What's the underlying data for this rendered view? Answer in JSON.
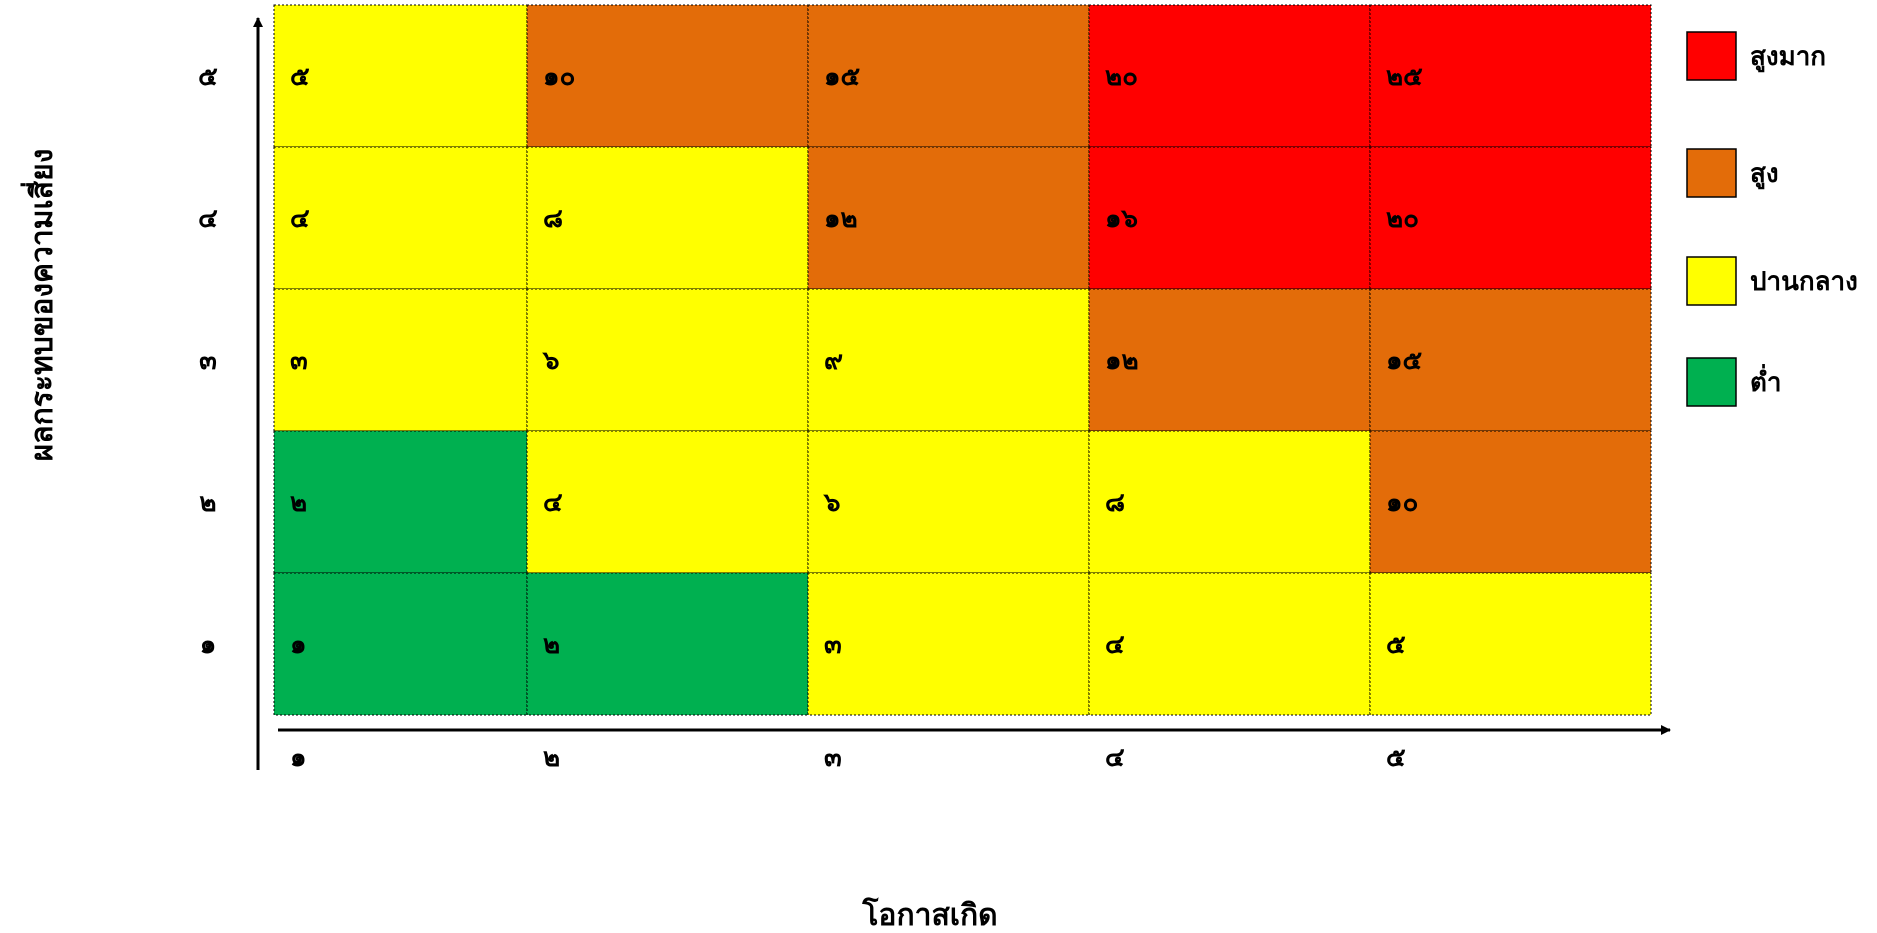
{
  "chart_data": {
    "type": "heatmap",
    "xlabel": "โอกาสเกิด",
    "ylabel": "ผลกระทบของความเสี่ยง",
    "x_ticks": [
      "๑",
      "๒",
      "๓",
      "๔",
      "๕"
    ],
    "y_ticks": [
      "๑",
      "๒",
      "๓",
      "๔",
      "๕"
    ],
    "grid": true,
    "legend_position": "right",
    "levels": [
      {
        "key": "very_high",
        "label": "สูงมาก",
        "color": "#FF0000"
      },
      {
        "key": "high",
        "label": "สูง",
        "color": "#E36C09"
      },
      {
        "key": "medium",
        "label": "ปานกลาง",
        "color": "#FFFF00"
      },
      {
        "key": "low",
        "label": "ต่ำ",
        "color": "#00B050"
      }
    ],
    "rows": [
      {
        "impact": 5,
        "cells": [
          {
            "text": "๕",
            "value": 5,
            "level": "medium"
          },
          {
            "text": "๑๐",
            "value": 10,
            "level": "high"
          },
          {
            "text": "๑๕",
            "value": 15,
            "level": "high"
          },
          {
            "text": "๒๐",
            "value": 20,
            "level": "very_high"
          },
          {
            "text": "๒๕",
            "value": 25,
            "level": "very_high"
          }
        ]
      },
      {
        "impact": 4,
        "cells": [
          {
            "text": "๔",
            "value": 4,
            "level": "medium"
          },
          {
            "text": "๘",
            "value": 8,
            "level": "medium"
          },
          {
            "text": "๑๒",
            "value": 12,
            "level": "high"
          },
          {
            "text": "๑๖",
            "value": 16,
            "level": "very_high"
          },
          {
            "text": "๒๐",
            "value": 20,
            "level": "very_high"
          }
        ]
      },
      {
        "impact": 3,
        "cells": [
          {
            "text": "๓",
            "value": 3,
            "level": "medium"
          },
          {
            "text": "๖",
            "value": 6,
            "level": "medium"
          },
          {
            "text": "๙",
            "value": 9,
            "level": "medium"
          },
          {
            "text": "๑๒",
            "value": 12,
            "level": "high"
          },
          {
            "text": "๑๕",
            "value": 15,
            "level": "high"
          }
        ]
      },
      {
        "impact": 2,
        "cells": [
          {
            "text": "๒",
            "value": 2,
            "level": "low"
          },
          {
            "text": "๔",
            "value": 4,
            "level": "medium"
          },
          {
            "text": "๖",
            "value": 6,
            "level": "medium"
          },
          {
            "text": "๘",
            "value": 8,
            "level": "medium"
          },
          {
            "text": "๑๐",
            "value": 10,
            "level": "high"
          }
        ]
      },
      {
        "impact": 1,
        "cells": [
          {
            "text": "๑",
            "value": 1,
            "level": "low"
          },
          {
            "text": "๒",
            "value": 2,
            "level": "low"
          },
          {
            "text": "๓",
            "value": 3,
            "level": "medium"
          },
          {
            "text": "๔",
            "value": 4,
            "level": "medium"
          },
          {
            "text": "๕",
            "value": 5,
            "level": "medium"
          }
        ]
      }
    ]
  }
}
